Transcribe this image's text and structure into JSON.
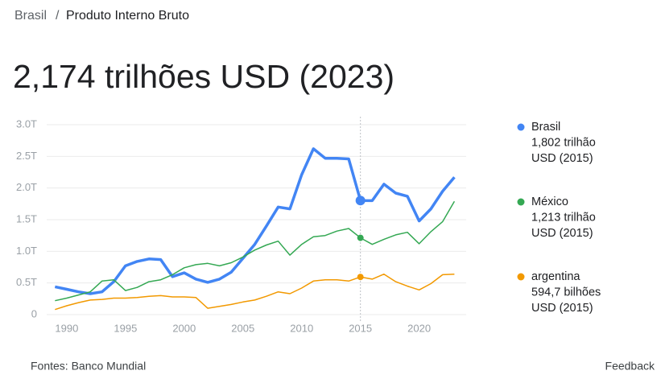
{
  "header": {
    "breadcrumb": [
      "Brasil",
      "/",
      "Produto Interno Bruto"
    ],
    "headline": "2,174 trilhões USD (2023)"
  },
  "footer": {
    "source": "Fontes: Banco Mundial",
    "feedback": "Feedback"
  },
  "chart_data": {
    "type": "line",
    "x": [
      1989,
      1990,
      1991,
      1992,
      1993,
      1994,
      1995,
      1996,
      1997,
      1998,
      1999,
      2000,
      2001,
      2002,
      2003,
      2004,
      2005,
      2006,
      2007,
      2008,
      2009,
      2010,
      2011,
      2012,
      2013,
      2014,
      2015,
      2016,
      2017,
      2018,
      2019,
      2020,
      2021,
      2022,
      2023
    ],
    "series": [
      {
        "name": "Brasil",
        "color": "#4285f4",
        "legend_detail": "USD (2015)",
        "values": [
          0.44,
          0.4,
          0.36,
          0.33,
          0.36,
          0.52,
          0.77,
          0.84,
          0.88,
          0.87,
          0.6,
          0.66,
          0.56,
          0.51,
          0.56,
          0.67,
          0.89,
          1.11,
          1.4,
          1.7,
          1.67,
          2.21,
          2.62,
          2.47,
          2.47,
          2.46,
          1.802,
          1.8,
          2.06,
          1.92,
          1.87,
          1.48,
          1.67,
          1.95,
          2.17
        ],
        "value_labels": [
          null,
          null,
          null,
          null,
          null,
          null,
          null,
          null,
          null,
          null,
          null,
          null,
          null,
          null,
          null,
          null,
          null,
          null,
          null,
          null,
          null,
          null,
          null,
          null,
          null,
          null,
          "1,802 trilhão",
          null,
          null,
          null,
          null,
          null,
          null,
          null,
          null
        ]
      },
      {
        "name": "México",
        "color": "#34a853",
        "legend_detail": "USD (2015)",
        "values": [
          0.22,
          0.26,
          0.31,
          0.36,
          0.53,
          0.55,
          0.38,
          0.43,
          0.52,
          0.55,
          0.63,
          0.74,
          0.79,
          0.81,
          0.77,
          0.82,
          0.91,
          1.02,
          1.1,
          1.16,
          0.94,
          1.11,
          1.23,
          1.25,
          1.32,
          1.36,
          1.213,
          1.11,
          1.19,
          1.26,
          1.3,
          1.12,
          1.31,
          1.47,
          1.79
        ],
        "value_labels": [
          null,
          null,
          null,
          null,
          null,
          null,
          null,
          null,
          null,
          null,
          null,
          null,
          null,
          null,
          null,
          null,
          null,
          null,
          null,
          null,
          null,
          null,
          null,
          null,
          null,
          null,
          "1,213 trilhão",
          null,
          null,
          null,
          null,
          null,
          null,
          null,
          null
        ]
      },
      {
        "name": "argentina",
        "color": "#f29900",
        "legend_detail": "USD (2015)",
        "values": [
          0.08,
          0.14,
          0.19,
          0.23,
          0.24,
          0.26,
          0.26,
          0.27,
          0.29,
          0.3,
          0.28,
          0.28,
          0.27,
          0.1,
          0.13,
          0.16,
          0.2,
          0.23,
          0.29,
          0.36,
          0.33,
          0.42,
          0.53,
          0.55,
          0.55,
          0.53,
          0.5947,
          0.56,
          0.64,
          0.52,
          0.45,
          0.39,
          0.49,
          0.63,
          0.64
        ],
        "value_labels": [
          null,
          null,
          null,
          null,
          null,
          null,
          null,
          null,
          null,
          null,
          null,
          null,
          null,
          null,
          null,
          null,
          null,
          null,
          null,
          null,
          null,
          null,
          null,
          null,
          null,
          null,
          "594,7 bilhões",
          null,
          null,
          null,
          null,
          null,
          null,
          null,
          null
        ]
      }
    ],
    "crosshair_x": 2015,
    "xlim": [
      1988.5,
      2024
    ],
    "xticks": [
      1990,
      1995,
      2000,
      2005,
      2010,
      2015,
      2020
    ],
    "ylim": [
      0,
      3.0
    ],
    "yticks": [
      0,
      {
        "value": 0.5,
        "label": "0.5T"
      },
      {
        "value": 1.0,
        "label": "1.0T"
      },
      {
        "value": 1.5,
        "label": "1.5T"
      },
      {
        "value": 2.0,
        "label": "2.0T"
      },
      {
        "value": 2.5,
        "label": "2.5T"
      },
      {
        "value": 3.0,
        "label": "3.0T"
      }
    ],
    "grid": true
  }
}
